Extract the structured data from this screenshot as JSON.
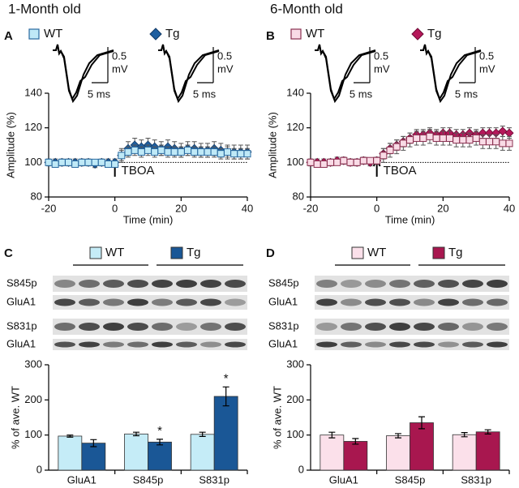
{
  "headers": [
    "1-Month old",
    "6-Month old"
  ],
  "chart_data": [
    {
      "type": "line",
      "panel": "A",
      "x_label": "Time (min)",
      "y_label": "Amplitude (%)",
      "xlim": [
        -20,
        40
      ],
      "xticks": [
        -20,
        0,
        20,
        40
      ],
      "ylim": [
        80,
        140
      ],
      "yticks": [
        80,
        100,
        120,
        140
      ],
      "hline": 100,
      "annotation": {
        "text": "TBOA",
        "x": 0
      },
      "scale_bar_labels": [
        "0.5",
        "mV",
        "5 ms"
      ],
      "x": [
        -20,
        -18,
        -16,
        -14,
        -12,
        -10,
        -8,
        -6,
        -4,
        -2,
        0,
        2,
        4,
        6,
        8,
        10,
        12,
        14,
        16,
        18,
        20,
        22,
        24,
        26,
        28,
        30,
        32,
        34,
        36,
        38,
        40
      ],
      "series": [
        {
          "name": "WT",
          "marker": "square",
          "color": "#bfe9f7",
          "edge": "#2a6aa0",
          "values": [
            100,
            99,
            100,
            100,
            99,
            100,
            100,
            100,
            100,
            99,
            99,
            104,
            106,
            107,
            106,
            107,
            106,
            107,
            106,
            106,
            106,
            107,
            106,
            106,
            106,
            106,
            105,
            106,
            105,
            105,
            105
          ],
          "errors": [
            1,
            1,
            1,
            1,
            1,
            1,
            1,
            1,
            1,
            1,
            1,
            3,
            3,
            3,
            3,
            3,
            3,
            3,
            3,
            3,
            3,
            3,
            3,
            3,
            3,
            3,
            3,
            3,
            3,
            3,
            3
          ]
        },
        {
          "name": "Tg",
          "marker": "diamond",
          "color": "#1f5fa0",
          "edge": "#123a66",
          "values": [
            100,
            100,
            100,
            100,
            100,
            100,
            100,
            99,
            100,
            100,
            100,
            104,
            108,
            110,
            109,
            110,
            109,
            108,
            109,
            108,
            107,
            108,
            108,
            107,
            107,
            108,
            107,
            106,
            106,
            106,
            106
          ],
          "errors": [
            2,
            2,
            2,
            2,
            2,
            2,
            2,
            2,
            2,
            2,
            2,
            4,
            4,
            4,
            4,
            4,
            4,
            4,
            4,
            4,
            4,
            4,
            4,
            4,
            4,
            4,
            4,
            4,
            4,
            4,
            4
          ]
        }
      ]
    },
    {
      "type": "line",
      "panel": "B",
      "x_label": "Time (min)",
      "y_label": "Amplitude (%)",
      "xlim": [
        -20,
        40
      ],
      "xticks": [
        -20,
        0,
        20,
        40
      ],
      "ylim": [
        80,
        140
      ],
      "yticks": [
        80,
        100,
        120,
        140
      ],
      "hline": 100,
      "annotation": {
        "text": "TBOA",
        "x": 0
      },
      "scale_bar_labels": [
        "0.5",
        "mV",
        "5 ms"
      ],
      "x": [
        -20,
        -18,
        -16,
        -14,
        -12,
        -10,
        -8,
        -6,
        -4,
        -2,
        0,
        2,
        4,
        6,
        8,
        10,
        12,
        14,
        16,
        18,
        20,
        22,
        24,
        26,
        28,
        30,
        32,
        34,
        36,
        38,
        40
      ],
      "series": [
        {
          "name": "WT",
          "marker": "square",
          "color": "#f9dbe6",
          "edge": "#8a3050",
          "values": [
            100,
            99,
            99,
            100,
            100,
            101,
            100,
            100,
            101,
            101,
            101,
            104,
            107,
            109,
            111,
            113,
            114,
            114,
            115,
            114,
            114,
            114,
            113,
            113,
            113,
            114,
            112,
            112,
            112,
            111,
            111
          ],
          "errors": [
            1,
            1,
            1,
            1,
            1,
            1,
            1,
            1,
            1,
            1,
            1,
            4,
            4,
            4,
            4,
            4,
            4,
            4,
            4,
            4,
            4,
            4,
            4,
            4,
            4,
            4,
            4,
            4,
            4,
            4,
            4
          ]
        },
        {
          "name": "Tg",
          "marker": "diamond",
          "color": "#b5185a",
          "edge": "#6e0c36",
          "values": [
            100,
            100,
            100,
            100,
            101,
            101,
            100,
            100,
            101,
            100,
            101,
            105,
            108,
            110,
            112,
            114,
            116,
            116,
            117,
            116,
            117,
            117,
            116,
            116,
            117,
            116,
            117,
            117,
            117,
            118,
            117
          ],
          "errors": [
            2,
            2,
            2,
            2,
            2,
            2,
            2,
            2,
            2,
            2,
            2,
            3,
            3,
            3,
            3,
            3,
            3,
            3,
            3,
            3,
            3,
            3,
            3,
            3,
            3,
            3,
            3,
            3,
            3,
            3,
            3
          ]
        }
      ]
    },
    {
      "type": "bar",
      "panel": "C",
      "y_label": "% of ave. WT",
      "blot_labels": [
        "S845p",
        "GluA1",
        "S831p",
        "GluA1"
      ],
      "categories": [
        "GluA1",
        "S845p",
        "S831p"
      ],
      "ylim": [
        0,
        300
      ],
      "yticks": [
        0,
        100,
        200,
        300
      ],
      "series": [
        {
          "name": "WT",
          "color": "#c5ecf7",
          "values": [
            97,
            103,
            102
          ],
          "errors": [
            3,
            5,
            6
          ]
        },
        {
          "name": "Tg",
          "color": "#1a5796",
          "values": [
            77,
            80,
            210
          ],
          "errors": [
            10,
            8,
            27
          ],
          "value_annotations": [
            null,
            "*",
            "*"
          ]
        }
      ]
    },
    {
      "type": "bar",
      "panel": "D",
      "y_label": "% of ave. WT",
      "blot_labels": [
        "S845p",
        "GluA1",
        "S831p",
        "GluA1"
      ],
      "categories": [
        "GluA1",
        "S845p",
        "S831p"
      ],
      "ylim": [
        0,
        300
      ],
      "yticks": [
        0,
        100,
        200,
        300
      ],
      "series": [
        {
          "name": "WT",
          "color": "#fbe0ea",
          "values": [
            100,
            98,
            101
          ],
          "errors": [
            8,
            6,
            6
          ]
        },
        {
          "name": "Tg",
          "color": "#a8174f",
          "values": [
            82,
            135,
            109
          ],
          "errors": [
            8,
            17,
            6
          ]
        }
      ]
    }
  ]
}
